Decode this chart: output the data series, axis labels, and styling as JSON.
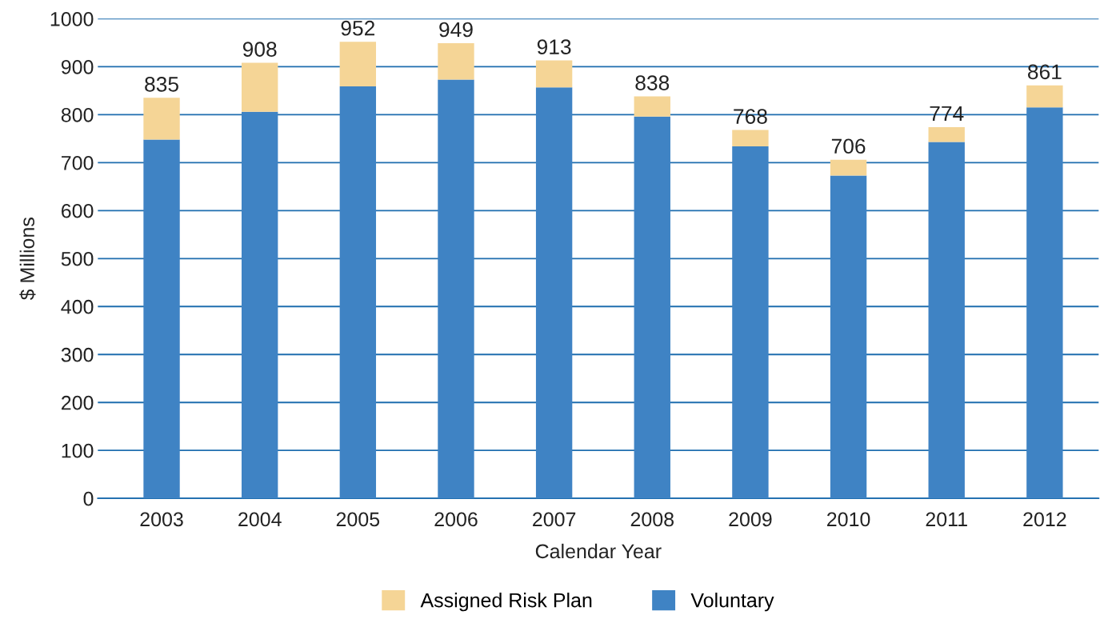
{
  "chart_data": {
    "type": "bar",
    "stacked": true,
    "xlabel": "Calendar Year",
    "ylabel": "$ Millions",
    "categories": [
      "2003",
      "2004",
      "2005",
      "2006",
      "2007",
      "2008",
      "2009",
      "2010",
      "2011",
      "2012"
    ],
    "series": [
      {
        "name": "Voluntary",
        "color": "#3f83c4",
        "values": [
          748,
          806,
          859,
          873,
          857,
          796,
          734,
          673,
          743,
          815
        ]
      },
      {
        "name": "Assigned Risk Plan",
        "color": "#f5d596",
        "values": [
          87,
          102,
          93,
          76,
          56,
          42,
          34,
          33,
          31,
          46
        ]
      }
    ],
    "totals": [
      "835",
      "908",
      "952",
      "949",
      "913",
      "838",
      "768",
      "706",
      "774",
      "861"
    ],
    "ylim": [
      0,
      1000
    ],
    "yticks": [
      0,
      100,
      200,
      300,
      400,
      500,
      600,
      700,
      800,
      900,
      1000
    ],
    "grid": "y",
    "legend": "bottom"
  }
}
